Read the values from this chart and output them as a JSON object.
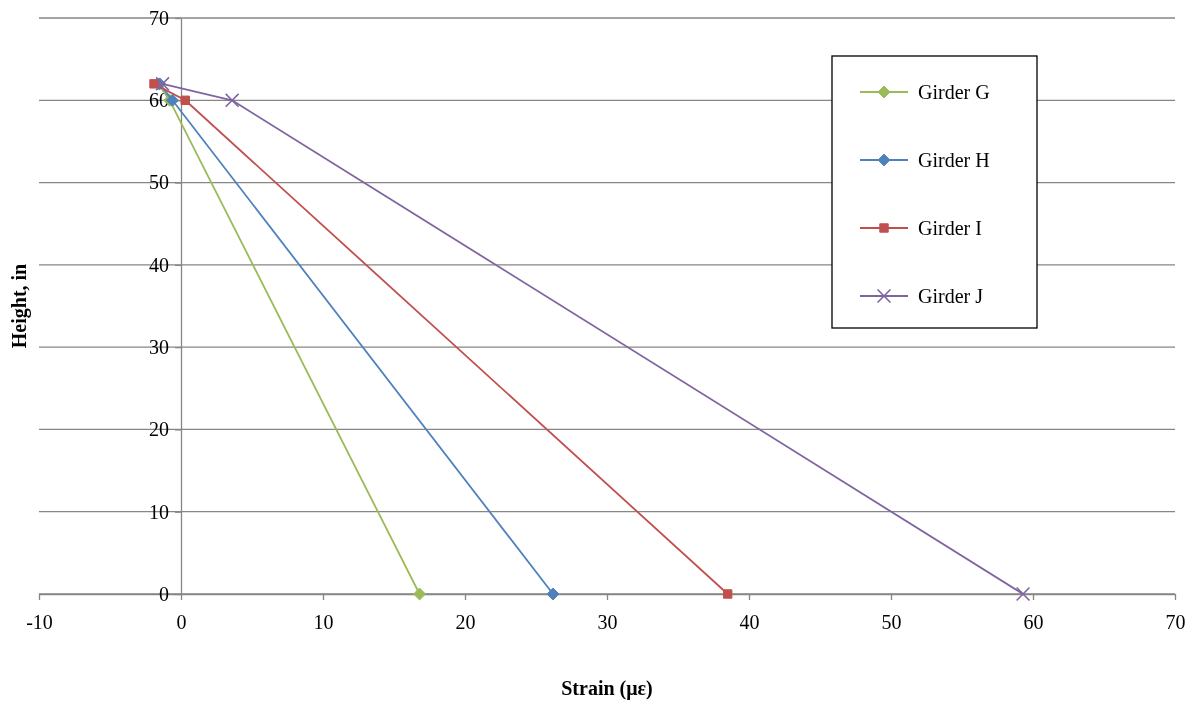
{
  "chart_data": {
    "type": "line",
    "xlabel": "Strain (με)",
    "ylabel": "Height, in",
    "xlim": [
      -10,
      70
    ],
    "xticks": [
      -10,
      0,
      10,
      20,
      30,
      40,
      50,
      60,
      70
    ],
    "ylim": [
      0,
      70
    ],
    "yticks": [
      0,
      10,
      20,
      30,
      40,
      50,
      60,
      70
    ],
    "grid": "y",
    "legend": "top right",
    "series": [
      {
        "name": "Girder G",
        "color": "#9bbb59",
        "marker": "diamond",
        "x": [
          -1.6,
          -0.8,
          16.8
        ],
        "values": [
          62,
          60,
          0
        ]
      },
      {
        "name": "Girder H",
        "color": "#4f81bd",
        "marker": "diamond",
        "x": [
          -1.5,
          -0.6,
          26.2
        ],
        "values": [
          62,
          60,
          0
        ]
      },
      {
        "name": "Girder I",
        "color": "#c0504d",
        "marker": "square",
        "x": [
          -1.9,
          0.3,
          38.5
        ],
        "values": [
          62,
          60,
          0
        ]
      },
      {
        "name": "Girder J",
        "color": "#8064a2",
        "marker": "cross",
        "x": [
          -1.3,
          3.6,
          59.3
        ],
        "values": [
          62,
          60,
          0
        ]
      }
    ]
  }
}
